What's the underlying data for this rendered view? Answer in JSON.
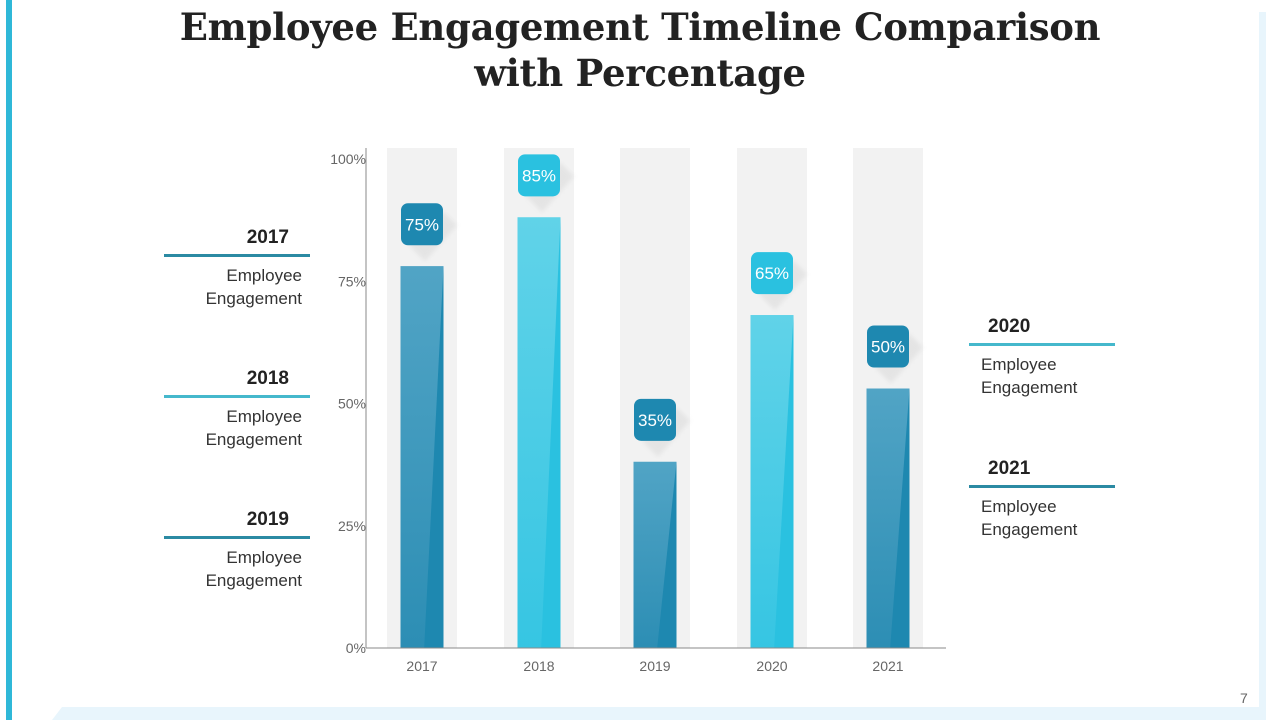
{
  "title": "Employee Engagement Timeline Comparison with Percentage",
  "page_number": "7",
  "colors": {
    "dark": "#1e88b0",
    "light": "#2ac1e0",
    "accent": "#2fb8d8",
    "track": "#f2f2f2",
    "legend_rule_dark": "#2b8aa3",
    "legend_rule_light": "#45b8cc"
  },
  "chart_data": {
    "type": "bar",
    "title": "Employee Engagement Timeline Comparison with Percentage",
    "xlabel": "",
    "ylabel": "",
    "categories": [
      "2017",
      "2018",
      "2019",
      "2020",
      "2021"
    ],
    "values": [
      75,
      85,
      35,
      65,
      50
    ],
    "data_labels": [
      "75%",
      "85%",
      "35%",
      "65%",
      "50%"
    ],
    "bar_colors": [
      "dark",
      "light",
      "dark",
      "light",
      "dark"
    ],
    "ylim": [
      0,
      100
    ],
    "yticks": [
      0,
      25,
      50,
      75,
      100
    ],
    "ytick_labels": [
      "0%",
      "25%",
      "50%",
      "75%",
      "100%"
    ],
    "grid": false
  },
  "legend_left": [
    {
      "year": "2017",
      "line1": "Employee",
      "line2": "Engagement",
      "color": "dark"
    },
    {
      "year": "2018",
      "line1": "Employee",
      "line2": "Engagement",
      "color": "light"
    },
    {
      "year": "2019",
      "line1": "Employee",
      "line2": "Engagement",
      "color": "dark"
    }
  ],
  "legend_right": [
    {
      "year": "2020",
      "line1": "Employee",
      "line2": "Engagement",
      "color": "light"
    },
    {
      "year": "2021",
      "line1": "Employee",
      "line2": "Engagement",
      "color": "dark"
    }
  ]
}
